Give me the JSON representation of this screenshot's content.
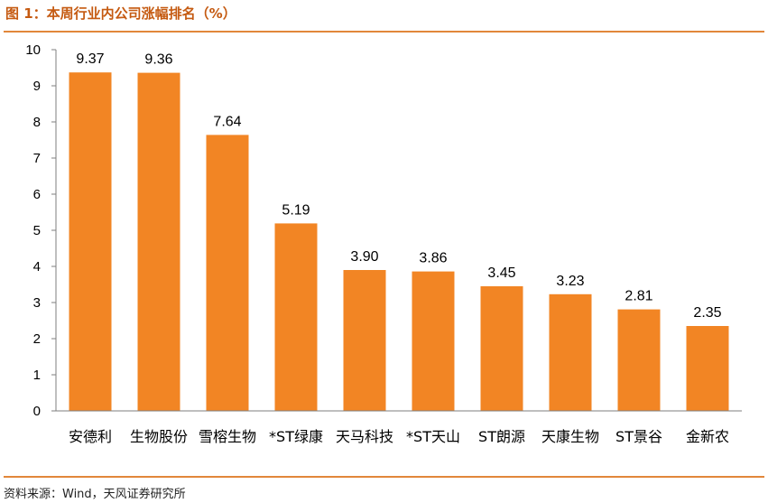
{
  "header": {
    "title": "图 1：本周行业内公司涨幅排名（%）"
  },
  "footer": {
    "source": "资料来源：Wind，天风证券研究所"
  },
  "colors": {
    "bar": "#F28524",
    "accent": "#E2873A",
    "title": "#C55A11"
  },
  "chart_data": {
    "type": "bar",
    "title": "本周行业内公司涨幅排名（%）",
    "xlabel": "",
    "ylabel": "",
    "ylim": [
      0,
      10
    ],
    "yticks": [
      0,
      1,
      2,
      3,
      4,
      5,
      6,
      7,
      8,
      9,
      10
    ],
    "grid": false,
    "categories": [
      "安德利",
      "生物股份",
      "雪榕生物",
      "*ST绿康",
      "天马科技",
      "*ST天山",
      "ST朗源",
      "天康生物",
      "ST景谷",
      "金新农"
    ],
    "values": [
      9.37,
      9.36,
      7.64,
      5.19,
      3.9,
      3.86,
      3.45,
      3.23,
      2.81,
      2.35
    ],
    "value_labels": [
      "9.37",
      "9.36",
      "7.64",
      "5.19",
      "3.90",
      "3.86",
      "3.45",
      "3.23",
      "2.81",
      "2.35"
    ]
  }
}
